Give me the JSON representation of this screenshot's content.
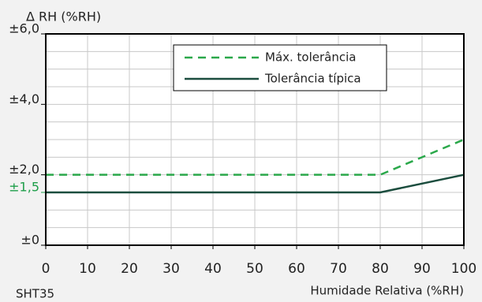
{
  "chart_data": {
    "type": "line",
    "ylabel": "Δ RH (%RH)",
    "xlabel": "Humidade Relativa (%RH)",
    "annotation": "SHT35",
    "x": [
      0,
      80,
      100
    ],
    "series": [
      {
        "name": "Máx. tolerância",
        "color": "#2aa84a",
        "dash": true,
        "values": [
          2,
          2,
          3
        ]
      },
      {
        "name": "Tolerância típica",
        "color": "#1b4d3e",
        "dash": false,
        "values": [
          1.5,
          1.5,
          2
        ]
      }
    ],
    "xlim": [
      0,
      100
    ],
    "xticks": [
      0,
      10,
      20,
      30,
      40,
      50,
      60,
      70,
      80,
      90,
      100
    ],
    "ylim": [
      0,
      6
    ],
    "yticks": [
      {
        "value": 0,
        "label": "±0"
      },
      {
        "value": 1.5,
        "label": "±1,5",
        "color": "#1e9e4a"
      },
      {
        "value": 2,
        "label": "±2,0"
      },
      {
        "value": 4,
        "label": "±4,0"
      },
      {
        "value": 6,
        "label": "±6,0"
      }
    ],
    "ygrid": [
      0.5,
      1,
      1.5,
      2,
      2.5,
      3,
      3.5,
      4,
      4.5,
      5,
      5.5
    ],
    "grid": true,
    "legend": "top"
  }
}
